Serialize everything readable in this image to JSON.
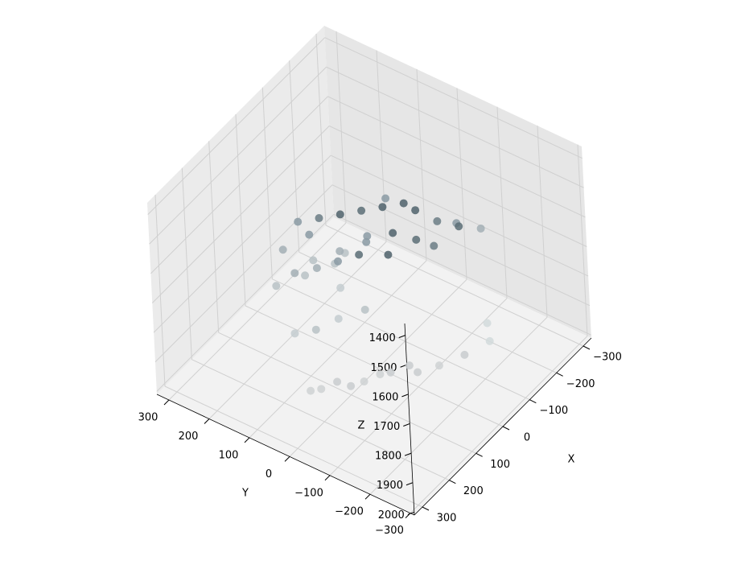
{
  "chart_data": {
    "type": "scatter3d",
    "xlabel": "X",
    "ylabel": "Y",
    "zlabel": "Z",
    "xlim": [
      -330,
      330
    ],
    "ylim": [
      -310,
      330
    ],
    "zlim": [
      2010,
      1360
    ],
    "xticks": [
      {
        "value": -300,
        "label": "−300"
      },
      {
        "value": -200,
        "label": "−200"
      },
      {
        "value": -100,
        "label": "−100"
      },
      0,
      100,
      200,
      300
    ],
    "yticks": [
      {
        "value": -300,
        "label": "−300"
      },
      {
        "value": -200,
        "label": "−200"
      },
      {
        "value": -100,
        "label": "−100"
      },
      0,
      100,
      200,
      300
    ],
    "zticks": [
      1400,
      1500,
      1600,
      1700,
      1800,
      1900,
      2000
    ],
    "grid": true,
    "x": [
      -120,
      -100,
      -80,
      -60,
      -40,
      -20,
      0,
      20,
      40,
      60,
      -150,
      -130,
      -90,
      -50,
      -10,
      30,
      70,
      110,
      -200,
      -180,
      -160,
      -140,
      -250,
      -220,
      50,
      90,
      130,
      150,
      -30,
      10,
      -70,
      -110,
      0,
      40,
      80,
      120,
      160,
      -60,
      -20,
      20,
      -100,
      -50,
      0,
      50,
      100,
      150,
      -150,
      -200
    ],
    "y": [
      0,
      40,
      80,
      120,
      160,
      200,
      -40,
      20,
      60,
      100,
      -50,
      -20,
      10,
      50,
      90,
      130,
      150,
      170,
      -80,
      -40,
      0,
      60,
      -100,
      -60,
      -10,
      30,
      60,
      100,
      180,
      220,
      120,
      90,
      -100,
      -60,
      -20,
      20,
      60,
      140,
      100,
      160,
      -150,
      -120,
      -80,
      -40,
      0,
      40,
      -180,
      -140
    ],
    "z": [
      1560,
      1580,
      1600,
      1620,
      1640,
      1660,
      1600,
      1620,
      1650,
      1680,
      1700,
      1680,
      1640,
      1660,
      1680,
      1700,
      1720,
      1740,
      1660,
      1650,
      1620,
      1600,
      1700,
      1680,
      1760,
      1780,
      1800,
      1820,
      1700,
      1740,
      1760,
      1720,
      1960,
      1950,
      1970,
      1960,
      1980,
      1800,
      1820,
      1780,
      1960,
      1970,
      1950,
      1960,
      1980,
      1970,
      1940,
      1950
    ],
    "colors": [
      "#4f626b",
      "#4f626b",
      "#5a6d76",
      "#4f626b",
      "#6b7d85",
      "#8a9aa3",
      "#4f626b",
      "#5a6d76",
      "#8a9aa3",
      "#a3afb5",
      "#6b7d85",
      "#5a6d76",
      "#4f626b",
      "#8a9aa3",
      "#a3afb5",
      "#b8c2c6",
      "#a3afb5",
      "#b8c2c6",
      "#5a6d76",
      "#6b7d85",
      "#4f626b",
      "#8a9aa3",
      "#a3afb5",
      "#8a9aa3",
      "#b8c2c6",
      "#c4ccd0",
      "#b8c2c6",
      "#c4ccd0",
      "#8a9aa3",
      "#a3afb5",
      "#b8c2c6",
      "#8a9aa3",
      "#c9cdcf",
      "#c9cdcf",
      "#cfd2d3",
      "#c9cdcf",
      "#cfd2d3",
      "#b8c2c6",
      "#c4ccd0",
      "#b8c2c6",
      "#c9cdcf",
      "#cfd2d3",
      "#c9cdcf",
      "#cfd2d3",
      "#c9cdcf",
      "#cfd2d3",
      "#d2dadc",
      "#d2dadc"
    ]
  }
}
